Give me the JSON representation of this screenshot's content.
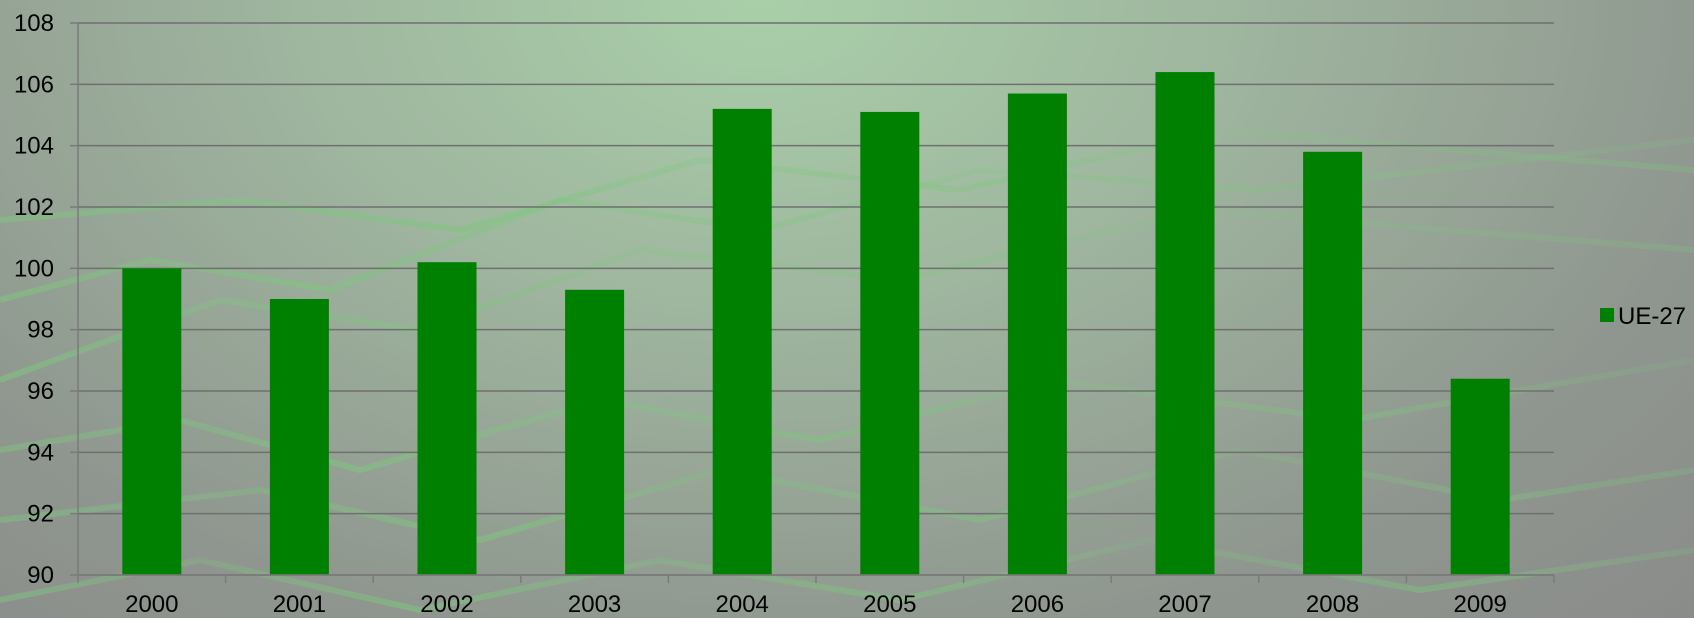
{
  "chart_data": {
    "type": "bar",
    "categories": [
      "2000",
      "2001",
      "2002",
      "2003",
      "2004",
      "2005",
      "2006",
      "2007",
      "2008",
      "2009"
    ],
    "series": [
      {
        "name": "UE-27",
        "values": [
          100.0,
          99.0,
          100.2,
          99.3,
          105.2,
          105.1,
          105.7,
          106.4,
          103.8,
          96.4
        ]
      }
    ],
    "ylim": [
      90,
      108
    ],
    "yticks": [
      "90",
      "92",
      "94",
      "96",
      "98",
      "100",
      "102",
      "104",
      "106",
      "108"
    ],
    "grid": true,
    "legend_position": "right",
    "colors": {
      "bar": "#008000",
      "gridline": "#6f6f6f",
      "axis": "#7a7a7a"
    }
  }
}
